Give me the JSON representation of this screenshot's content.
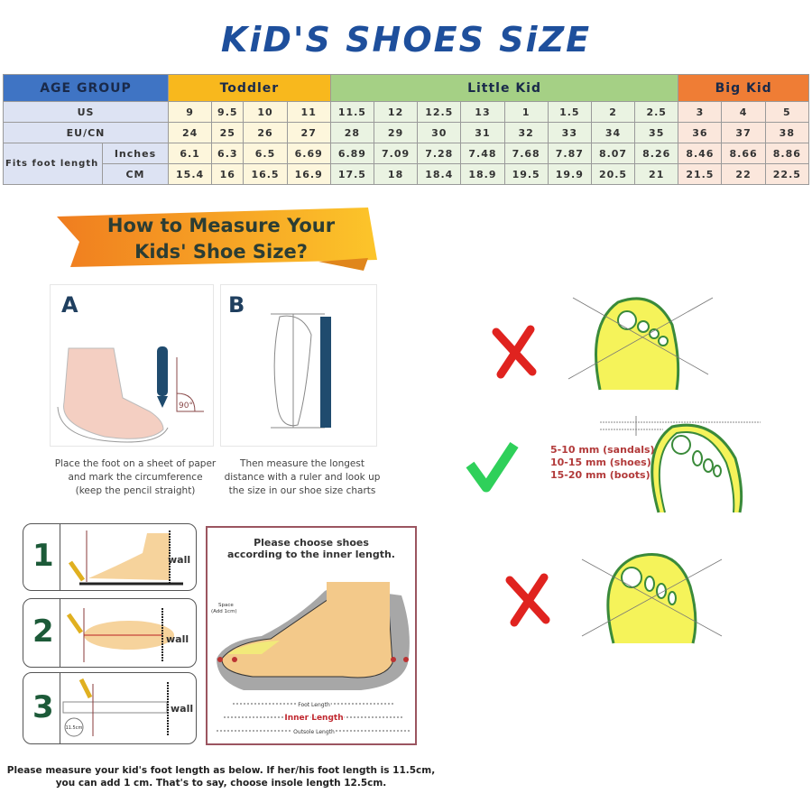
{
  "title": "KiD'S SHOES SiZE",
  "size_table": {
    "age_group_label": "AGE GROUP",
    "groups": [
      {
        "name": "Toddler",
        "color": "#f8b81d"
      },
      {
        "name": "Little Kid",
        "color": "#a5d085"
      },
      {
        "name": "Big Kid",
        "color": "#ef7d35"
      }
    ],
    "row_labels": {
      "us": "US",
      "eu": "EU/CN",
      "fits": "Fits foot length",
      "inches": "Inches",
      "cm": "CM"
    },
    "us": [
      "9",
      "9.5",
      "10",
      "11",
      "11.5",
      "12",
      "12.5",
      "13",
      "1",
      "1.5",
      "2",
      "2.5",
      "3",
      "4",
      "5"
    ],
    "eu": [
      "24",
      "25",
      "26",
      "27",
      "28",
      "29",
      "30",
      "31",
      "32",
      "33",
      "34",
      "35",
      "36",
      "37",
      "38"
    ],
    "inches": [
      "6.1",
      "6.3",
      "6.5",
      "6.69",
      "6.89",
      "7.09",
      "7.28",
      "7.48",
      "7.68",
      "7.87",
      "8.07",
      "8.26",
      "8.46",
      "8.66",
      "8.86"
    ],
    "cm": [
      "15.4",
      "16",
      "16.5",
      "16.9",
      "17.5",
      "18",
      "18.4",
      "18.9",
      "19.5",
      "19.9",
      "20.5",
      "21",
      "21.5",
      "22",
      "22.5"
    ]
  },
  "measure": {
    "banner_line1": "How to Measure Your",
    "banner_line2": "Kids' Shoe Size?",
    "panel_a_label": "A",
    "panel_b_label": "B",
    "angle_label": "90°",
    "caption_a": [
      "Place the foot on a sheet of paper",
      "and mark the circumference",
      "(keep the pencil straight)"
    ],
    "caption_b": [
      "Then measure the longest",
      "distance with a ruler and look up",
      "the size in our shoe size charts"
    ]
  },
  "fit": {
    "items": [
      {
        "status": "wrong",
        "icon": "red-x-icon"
      },
      {
        "status": "correct",
        "icon": "green-check-icon"
      },
      {
        "status": "wrong",
        "icon": "red-x-icon"
      }
    ],
    "allowances": [
      "5-10 mm (sandals)",
      "10-15 mm (shoes)",
      "15-20 mm (boots)"
    ]
  },
  "steps": [
    {
      "number": "1",
      "wall": "wall"
    },
    {
      "number": "2",
      "wall": "wall"
    },
    {
      "number": "3",
      "wall": "wall",
      "marker": "11.5cm"
    }
  ],
  "shoe": {
    "heading": [
      "Please choose shoes",
      "according to the inner length."
    ],
    "space_label": [
      "Space",
      "(Add 1cm)"
    ],
    "foot_length": "Foot Length",
    "inner_length": "Inner Length",
    "outsole_length": "Outsole Length"
  },
  "note": [
    "Please measure your kid's foot length as below. If her/his foot length is 11.5cm,",
    "you can add 1 cm. That's to say, choose insole length 12.5cm."
  ]
}
